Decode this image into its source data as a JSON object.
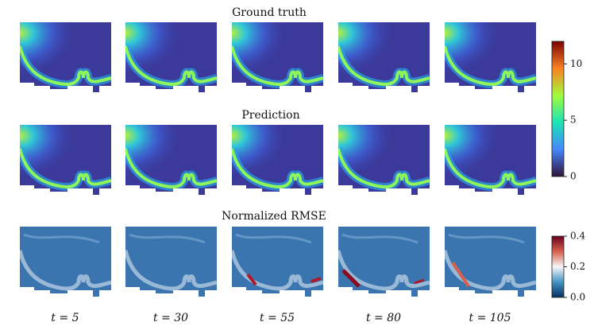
{
  "rows": [
    {
      "title": "Ground truth"
    },
    {
      "title": "Prediction"
    },
    {
      "title": "Normalized RMSE"
    }
  ],
  "times": [
    "t = 5",
    "t = 30",
    "t = 55",
    "t = 80",
    "t = 105"
  ],
  "colorbars": [
    {
      "ylim": [
        0,
        12
      ],
      "yticks": [
        0,
        5,
        10
      ]
    },
    {
      "ylim": [
        0,
        0.4
      ],
      "yticks": [
        {
          "value": 0,
          "label": "0.0"
        },
        {
          "value": 0.2,
          "label": "0.2"
        },
        {
          "value": 0.4,
          "label": "0.4"
        }
      ]
    }
  ]
}
